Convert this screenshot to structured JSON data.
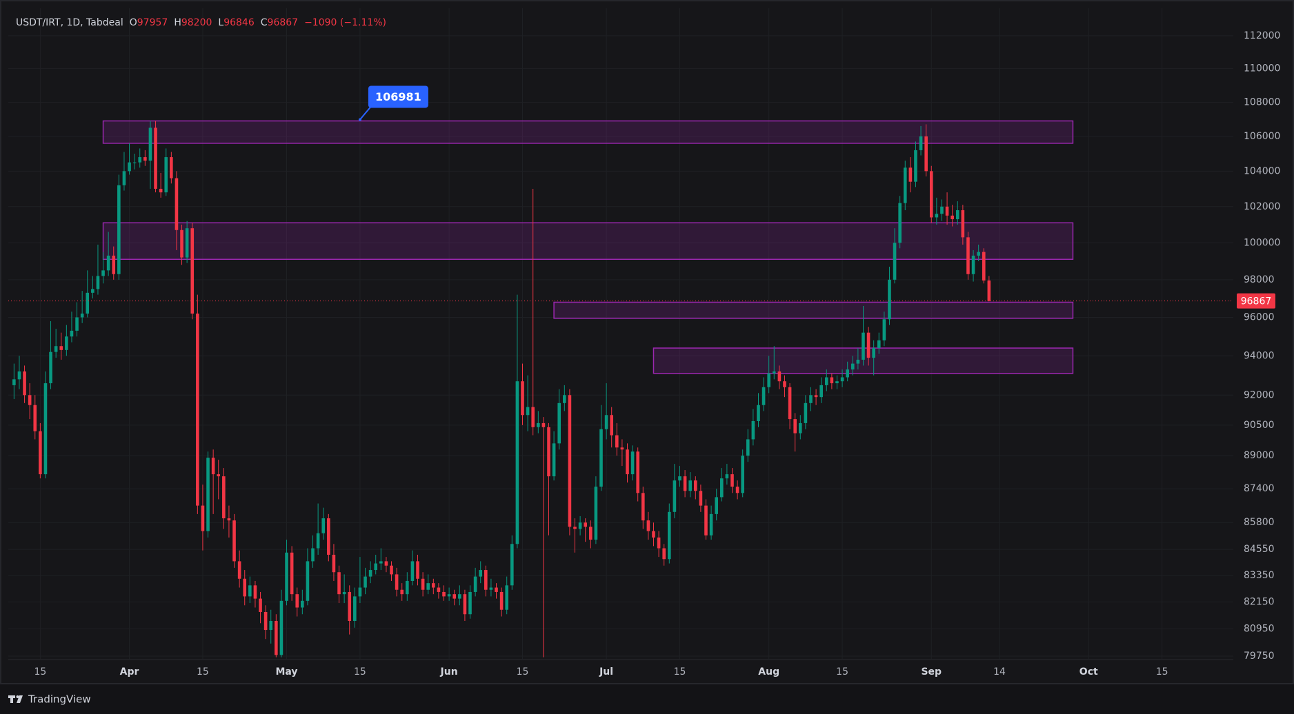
{
  "chart_data": {
    "type": "candlestick",
    "header": {
      "symbol": "USDT/IRT, 1D, Tabdeal",
      "ohlc_labels": [
        "O",
        "H",
        "L",
        "C"
      ],
      "change": "−1090 (−1.11%)"
    },
    "branding": "TradingView",
    "log_scale": true,
    "grid": true,
    "up_color": "#089981",
    "down_color": "#f23645",
    "xlim": [
      7.9,
      241.6
    ],
    "xticks": [
      {
        "value": 14,
        "label": "15"
      },
      {
        "value": 31,
        "label": "Apr"
      },
      {
        "value": 45,
        "label": "15"
      },
      {
        "value": 61,
        "label": "May"
      },
      {
        "value": 75,
        "label": "15"
      },
      {
        "value": 92,
        "label": "Jun"
      },
      {
        "value": 106,
        "label": "15"
      },
      {
        "value": 122,
        "label": "Jul"
      },
      {
        "value": 136,
        "label": "15"
      },
      {
        "value": 153,
        "label": "Aug"
      },
      {
        "value": 167,
        "label": "15"
      },
      {
        "value": 184,
        "label": "Sep"
      },
      {
        "value": 197,
        "label": "14"
      },
      {
        "value": 214,
        "label": "Oct"
      },
      {
        "value": 228,
        "label": "15"
      }
    ],
    "ylim": [
      79600,
      113700
    ],
    "yticks": [
      79750,
      80950,
      82150,
      83350,
      84550,
      85800,
      87400,
      89000,
      90500,
      92000,
      94000,
      96000,
      98000,
      100000,
      102000,
      104000,
      106000,
      108000,
      110000,
      112000
    ],
    "zone_color": "#9c27b0",
    "zones": [
      {
        "x": [
          26,
          211
        ],
        "y": [
          105600,
          106900
        ]
      },
      {
        "x": [
          26,
          211
        ],
        "y": [
          99100,
          101100
        ]
      },
      {
        "x": [
          112,
          211
        ],
        "y": [
          95950,
          96800
        ]
      },
      {
        "x": [
          131,
          211
        ],
        "y": [
          93100,
          94400
        ]
      }
    ],
    "price_note": {
      "x": 75,
      "value": 106981,
      "color": "#2962ff"
    },
    "candles": {
      "x": [
        9,
        10,
        11,
        12,
        13,
        14,
        15,
        16,
        17,
        18,
        19,
        20,
        21,
        22,
        23,
        24,
        25,
        26,
        27,
        28,
        29,
        30,
        31,
        32,
        33,
        34,
        35,
        36,
        37,
        38,
        39,
        40,
        41,
        42,
        43,
        44,
        45,
        46,
        47,
        48,
        49,
        50,
        51,
        52,
        53,
        54,
        55,
        56,
        57,
        58,
        59,
        60,
        61,
        62,
        63,
        64,
        65,
        66,
        67,
        68,
        69,
        70,
        71,
        72,
        73,
        74,
        75,
        76,
        77,
        78,
        79,
        80,
        81,
        82,
        83,
        84,
        85,
        86,
        87,
        88,
        89,
        90,
        91,
        92,
        93,
        94,
        95,
        96,
        97,
        98,
        99,
        100,
        101,
        102,
        103,
        104,
        105,
        106,
        107,
        108,
        109,
        110,
        111,
        112,
        113,
        114,
        115,
        116,
        117,
        118,
        119,
        120,
        121,
        122,
        123,
        124,
        125,
        126,
        127,
        128,
        129,
        130,
        131,
        132,
        133,
        134,
        135,
        136,
        137,
        138,
        139,
        140,
        141,
        142,
        143,
        144,
        145,
        146,
        147,
        148,
        149,
        150,
        151,
        152,
        153,
        154,
        155,
        156,
        157,
        158,
        159,
        160,
        161,
        162,
        163,
        164,
        165,
        166,
        167,
        168,
        169,
        170,
        171,
        172,
        173,
        174,
        175,
        176,
        177,
        178,
        179,
        180,
        181,
        182,
        183,
        184,
        185,
        186,
        187,
        188,
        189,
        190,
        191,
        192,
        193,
        194,
        195
      ],
      "open": [
        92500,
        92800,
        93200,
        92000,
        91500,
        90200,
        88100,
        92600,
        94200,
        94500,
        94300,
        95000,
        95300,
        96000,
        96200,
        97300,
        97500,
        98200,
        98500,
        99300,
        98300,
        103200,
        104000,
        104500,
        104500,
        104800,
        104600,
        106500,
        103000,
        102800,
        104800,
        103600,
        100700,
        99200,
        100800,
        96200,
        86600,
        85400,
        88900,
        88100,
        88000,
        86000,
        85900,
        84000,
        83200,
        82400,
        82900,
        82300,
        81700,
        80900,
        81300,
        79800,
        82200,
        84400,
        82500,
        81900,
        82200,
        84000,
        84600,
        85300,
        86000,
        84300,
        83500,
        82500,
        82600,
        81300,
        82400,
        82800,
        83300,
        83600,
        83900,
        84000,
        83800,
        83400,
        82700,
        82500,
        83100,
        84000,
        83200,
        82700,
        83000,
        82800,
        82600,
        82400,
        82500,
        82300,
        82500,
        81600,
        82600,
        83300,
        83600,
        82700,
        82800,
        82600,
        81800,
        82900,
        84800,
        92700,
        91000,
        91400,
        90400,
        90600,
        90400,
        88000,
        89600,
        91600,
        92000,
        85600,
        85500,
        85800,
        85600,
        85000,
        87500,
        90300,
        91000,
        90000,
        89400,
        89300,
        88100,
        89200,
        87200,
        85900,
        85400,
        85100,
        84600,
        84100,
        86300,
        87800,
        88000,
        87300,
        87800,
        87300,
        86600,
        85200,
        86200,
        87000,
        87900,
        88100,
        87500,
        87200,
        89000,
        89800,
        90700,
        91500,
        92400,
        93100,
        93200,
        92700,
        92400,
        90800,
        90100,
        90600,
        91600,
        92000,
        91900,
        92500,
        92900,
        92600,
        92700,
        92900,
        93300,
        93600,
        93800,
        95200,
        93900,
        94400,
        94800,
        95900,
        98000,
        100000,
        102200,
        104200,
        103400,
        105200,
        106000,
        104000,
        101400,
        101600,
        102000,
        101500,
        101300,
        101800,
        100300,
        98300,
        99300,
        99500,
        97957
      ],
      "high": [
        93600,
        94000,
        93500,
        92600,
        92000,
        90600,
        93200,
        95800,
        95400,
        95200,
        95600,
        96300,
        96800,
        97400,
        98500,
        98200,
        99900,
        99500,
        100600,
        99800,
        103800,
        105100,
        105600,
        105000,
        105300,
        105200,
        106900,
        106900,
        103900,
        105300,
        105100,
        104000,
        101000,
        101200,
        101100,
        97200,
        87600,
        89200,
        89300,
        88800,
        88400,
        86600,
        86200,
        84500,
        83600,
        83300,
        83100,
        82600,
        82000,
        81800,
        81600,
        82700,
        85000,
        84700,
        82800,
        82700,
        84600,
        85200,
        86700,
        86500,
        86200,
        84800,
        83800,
        83400,
        82900,
        82800,
        84200,
        83700,
        84000,
        84300,
        84600,
        84200,
        84000,
        83700,
        83000,
        83500,
        84500,
        84300,
        83500,
        83400,
        83200,
        83000,
        82900,
        82800,
        82700,
        82900,
        82700,
        82900,
        83700,
        84000,
        83800,
        83200,
        83000,
        82800,
        83300,
        85200,
        97200,
        93600,
        93000,
        103000,
        91200,
        90900,
        90600,
        90200,
        92300,
        92500,
        92300,
        86000,
        86100,
        86000,
        85900,
        88000,
        91500,
        92600,
        91400,
        90600,
        89800,
        89600,
        89500,
        89400,
        87500,
        86300,
        85800,
        85400,
        84800,
        86700,
        88600,
        88500,
        88300,
        88200,
        88000,
        87600,
        86900,
        86600,
        87400,
        88400,
        88600,
        88400,
        87800,
        89300,
        90300,
        91300,
        92100,
        92900,
        94000,
        94500,
        93500,
        93000,
        92600,
        91100,
        91000,
        92000,
        92400,
        92300,
        92900,
        93300,
        93100,
        93000,
        93300,
        93700,
        94000,
        94400,
        96600,
        95500,
        94800,
        95200,
        96300,
        98700,
        100800,
        102600,
        104600,
        104800,
        105700,
        106600,
        106700,
        104300,
        102500,
        102400,
        102800,
        102100,
        102300,
        102100,
        100600,
        99600,
        99900,
        99700,
        98200
      ],
      "low": [
        91800,
        92300,
        91600,
        90800,
        89800,
        87900,
        87900,
        92300,
        93900,
        93800,
        94000,
        94700,
        95000,
        95700,
        96000,
        97000,
        97200,
        97800,
        98200,
        98000,
        98000,
        102900,
        103800,
        104100,
        104200,
        104300,
        103000,
        102800,
        102500,
        102600,
        103300,
        99600,
        98800,
        98900,
        95900,
        86200,
        84500,
        85100,
        86200,
        86900,
        85500,
        85100,
        83700,
        82800,
        82000,
        82100,
        81900,
        81200,
        80500,
        80300,
        79700,
        79700,
        82000,
        82200,
        81500,
        81600,
        82000,
        83700,
        84300,
        85000,
        84000,
        83100,
        82100,
        82100,
        80700,
        81000,
        82100,
        82500,
        83000,
        83400,
        83600,
        83500,
        83100,
        82400,
        82200,
        82200,
        82900,
        82900,
        82400,
        82500,
        82500,
        82300,
        82200,
        82200,
        82000,
        82000,
        81300,
        81400,
        82400,
        83000,
        82400,
        82400,
        82300,
        81500,
        81600,
        82700,
        84600,
        90500,
        90200,
        90000,
        90100,
        79700,
        85200,
        87800,
        89300,
        91200,
        85200,
        84400,
        85200,
        84900,
        84600,
        84800,
        87300,
        89800,
        89400,
        89000,
        88500,
        87700,
        87800,
        86800,
        85500,
        85000,
        84700,
        84200,
        83800,
        83900,
        86000,
        87500,
        87000,
        87000,
        86900,
        86300,
        85000,
        85000,
        85900,
        86800,
        87600,
        87200,
        86900,
        87000,
        88700,
        89500,
        90400,
        91200,
        92100,
        92800,
        92300,
        91900,
        90300,
        89200,
        89800,
        90300,
        91200,
        91500,
        91600,
        92200,
        92300,
        92300,
        92400,
        92700,
        93000,
        93300,
        93500,
        93500,
        93000,
        94100,
        94500,
        95600,
        97800,
        99700,
        101800,
        102800,
        103100,
        104900,
        103700,
        101100,
        101000,
        101200,
        101000,
        100900,
        101000,
        99900,
        98000,
        97900,
        99000,
        97800,
        96846
      ],
      "close": [
        92800,
        93200,
        92000,
        91500,
        90200,
        88100,
        92600,
        94200,
        94500,
        94300,
        95000,
        95300,
        96000,
        96200,
        97300,
        97500,
        98200,
        98500,
        99300,
        98300,
        103200,
        104000,
        104500,
        104500,
        104800,
        104600,
        106500,
        103000,
        102800,
        104800,
        103600,
        100700,
        99200,
        100800,
        96200,
        86600,
        85400,
        88900,
        88100,
        88000,
        86000,
        85900,
        84000,
        83200,
        82400,
        82900,
        82300,
        81700,
        80900,
        81300,
        79800,
        82200,
        84400,
        82500,
        81900,
        82200,
        84000,
        84600,
        85300,
        86000,
        84300,
        83500,
        82500,
        82600,
        81300,
        82400,
        82800,
        83300,
        83600,
        83900,
        84000,
        83800,
        83400,
        82700,
        82500,
        83100,
        84000,
        83200,
        82700,
        83000,
        82800,
        82600,
        82400,
        82500,
        82300,
        82500,
        81600,
        82600,
        83300,
        83600,
        82700,
        82800,
        82600,
        81800,
        82900,
        84800,
        92700,
        91000,
        91400,
        90400,
        90600,
        90400,
        88000,
        89600,
        91600,
        92000,
        85600,
        85500,
        85800,
        85600,
        85000,
        87500,
        90300,
        91000,
        90000,
        89400,
        89300,
        88100,
        89200,
        87200,
        85900,
        85400,
        85100,
        84600,
        84100,
        86300,
        87800,
        88000,
        87300,
        87800,
        87300,
        86600,
        85200,
        86200,
        87000,
        87900,
        88100,
        87500,
        87200,
        89000,
        89800,
        90700,
        91500,
        92400,
        93100,
        93200,
        92700,
        92400,
        90800,
        90100,
        90600,
        91600,
        92000,
        91900,
        92500,
        92900,
        92600,
        92700,
        92900,
        93300,
        93600,
        93800,
        95200,
        93900,
        94400,
        94800,
        95900,
        98000,
        100000,
        102200,
        104200,
        103400,
        105200,
        106000,
        104000,
        101400,
        101600,
        102000,
        101500,
        101300,
        101800,
        100300,
        98300,
        99300,
        99500,
        97957,
        96867
      ]
    }
  }
}
